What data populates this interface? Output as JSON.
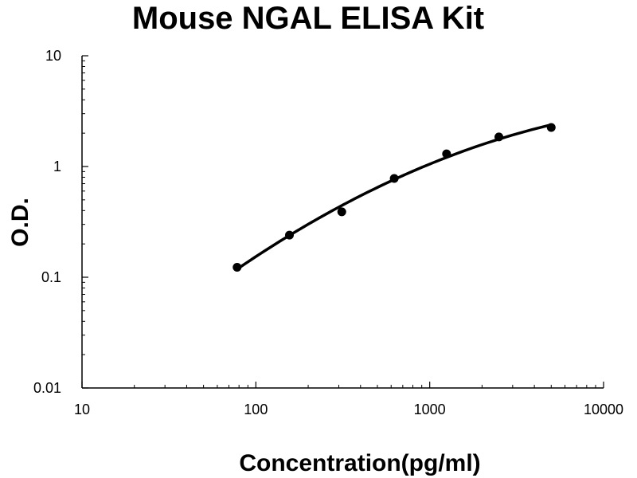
{
  "chart_data": {
    "type": "scatter",
    "title": "Mouse NGAL ELISA Kit",
    "xlabel": "Concentration(pg/ml)",
    "ylabel": "O.D.",
    "x_scale": "log",
    "y_scale": "log",
    "xlim": [
      10,
      10000
    ],
    "ylim": [
      0.01,
      10
    ],
    "x_ticks": [
      "10",
      "100",
      "1000",
      "10000"
    ],
    "y_ticks": [
      "0.01",
      "0.1",
      "1",
      "10"
    ],
    "grid": false,
    "legend": "none",
    "trendline": true,
    "series": [
      {
        "x": [
          78,
          156,
          312,
          625,
          1250,
          2500,
          5000
        ],
        "values": [
          0.123,
          0.24,
          0.39,
          0.78,
          1.3,
          1.85,
          2.25
        ]
      }
    ]
  }
}
